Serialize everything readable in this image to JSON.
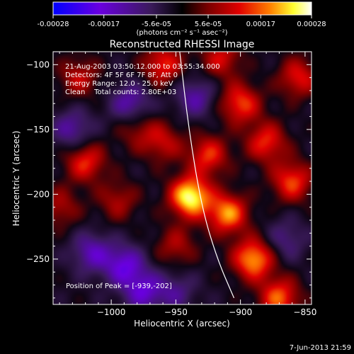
{
  "colorbar": {
    "ticks": [
      "-0.00028",
      "-0.00017",
      "-5.6e-05",
      "5.6e-05",
      "0.00017",
      "0.00028"
    ],
    "tick_values": [
      -0.00028,
      -0.00017,
      -5.6e-05,
      5.6e-05,
      0.00017,
      0.00028
    ],
    "range": [
      -0.00028,
      0.00028
    ],
    "units_text": "(photons cm⁻² s⁻¹ asec⁻²)"
  },
  "footer": {
    "timestamp": "7-Jun-2013 21:59"
  },
  "chart_data": {
    "type": "heatmap",
    "title": "Reconstructed RHESSI Image",
    "xlabel": "Heliocentric X (arcsec)",
    "ylabel": "Heliocentric Y (arcsec)",
    "xlim": [
      -1045,
      -845
    ],
    "ylim": [
      -285,
      -90
    ],
    "xticks": [
      -1000,
      -950,
      -900,
      -850
    ],
    "xtick_labels": [
      "−1000",
      "−950",
      "−900",
      "−850"
    ],
    "yticks": [
      -100,
      -150,
      -200,
      -250
    ],
    "ytick_labels": [
      "−100",
      "−150",
      "−200",
      "−250"
    ],
    "annotations": [
      "21-Aug-2003 03:50:12.000 to 03:55:34.000",
      "Detectors: 4F 5F 6F 7F 8F, Att 0",
      "Energy Range: 12.0 - 25.0 keV",
      "Clean    Total counts: 2.80E+03"
    ],
    "peak_label": "Position of Peak = [-939,-202]",
    "peak": {
      "x": -939,
      "y": -202
    },
    "colormap": [
      "#0000ff",
      "#7f00ff",
      "#3a1a5a",
      "#7a0030",
      "#e00000",
      "#ff8000",
      "#ffff40",
      "#ffffff"
    ],
    "limb_curve": [
      {
        "x": -947,
        "y": -90
      },
      {
        "x": -940,
        "y": -150
      },
      {
        "x": -930,
        "y": -210
      },
      {
        "x": -918,
        "y": -250
      },
      {
        "x": -905,
        "y": -280
      }
    ],
    "sources": [
      {
        "x": -939,
        "y": -202,
        "w": 1.0
      },
      {
        "x": -925,
        "y": -170,
        "w": 0.55
      },
      {
        "x": -910,
        "y": -215,
        "w": 0.75
      },
      {
        "x": -890,
        "y": -250,
        "w": 0.8
      },
      {
        "x": -870,
        "y": -280,
        "w": 0.65
      },
      {
        "x": -900,
        "y": -130,
        "w": 0.6
      },
      {
        "x": -880,
        "y": -160,
        "w": 0.55
      },
      {
        "x": -860,
        "y": -190,
        "w": 0.6
      },
      {
        "x": -855,
        "y": -110,
        "w": 0.5
      },
      {
        "x": -960,
        "y": -100,
        "w": 0.55
      },
      {
        "x": -1025,
        "y": -110,
        "w": 0.4
      },
      {
        "x": -1020,
        "y": -175,
        "w": 0.55
      },
      {
        "x": -995,
        "y": -205,
        "w": 0.35
      },
      {
        "x": -980,
        "y": -150,
        "w": 0.3
      },
      {
        "x": -950,
        "y": -240,
        "w": 0.35
      },
      {
        "x": -1040,
        "y": -210,
        "w": 0.35
      },
      {
        "x": -915,
        "y": -95,
        "w": 0.45
      },
      {
        "x": -960,
        "y": -160,
        "w": 0.4
      },
      {
        "x": -990,
        "y": -255,
        "w": -0.55
      },
      {
        "x": -975,
        "y": -275,
        "w": -0.5
      },
      {
        "x": -1015,
        "y": -245,
        "w": -0.45
      },
      {
        "x": -1030,
        "y": -150,
        "w": -0.4
      },
      {
        "x": -985,
        "y": -130,
        "w": -0.45
      },
      {
        "x": -935,
        "y": -125,
        "w": -0.4
      },
      {
        "x": -950,
        "y": -275,
        "w": -0.3
      },
      {
        "x": -865,
        "y": -235,
        "w": -0.3
      }
    ]
  }
}
